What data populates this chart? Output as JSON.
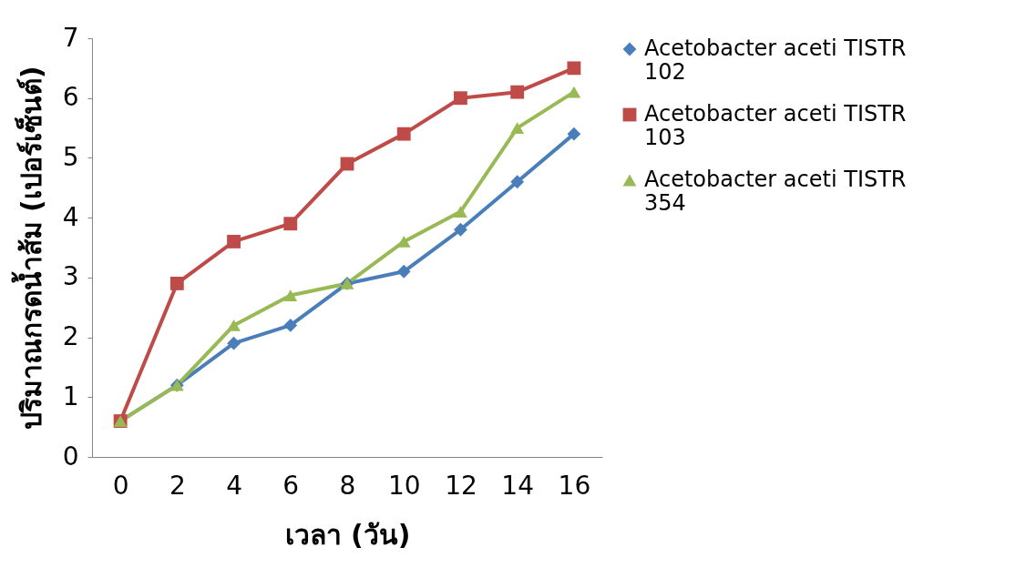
{
  "chart_data": {
    "type": "line",
    "xlabel": "เวลา (วัน)",
    "ylabel": "ปริมาณกรดน้ำส้ม (เปอร์เซ็นต์)",
    "categories": [
      "0",
      "2",
      "4",
      "6",
      "8",
      "10",
      "12",
      "14",
      "16"
    ],
    "ylim": [
      0,
      7
    ],
    "yticks": [
      0,
      1,
      2,
      3,
      4,
      5,
      6,
      7
    ],
    "grid": false,
    "legend": "right",
    "series": [
      {
        "name": "Acetobacter aceti TISTR 102",
        "color": "#4a7ebb",
        "marker": "diamond",
        "values": [
          0.6,
          1.2,
          1.9,
          2.2,
          2.9,
          3.1,
          3.8,
          4.6,
          5.4
        ]
      },
      {
        "name": "Acetobacter aceti TISTR 103",
        "color": "#be4b48",
        "marker": "square",
        "values": [
          0.6,
          2.9,
          3.6,
          3.9,
          4.9,
          5.4,
          6.0,
          6.1,
          6.5
        ]
      },
      {
        "name": "Acetobacter aceti TISTR 354",
        "color": "#98b954",
        "marker": "triangle",
        "values": [
          0.6,
          1.2,
          2.2,
          2.7,
          2.9,
          3.6,
          4.1,
          5.5,
          6.1
        ]
      }
    ]
  }
}
